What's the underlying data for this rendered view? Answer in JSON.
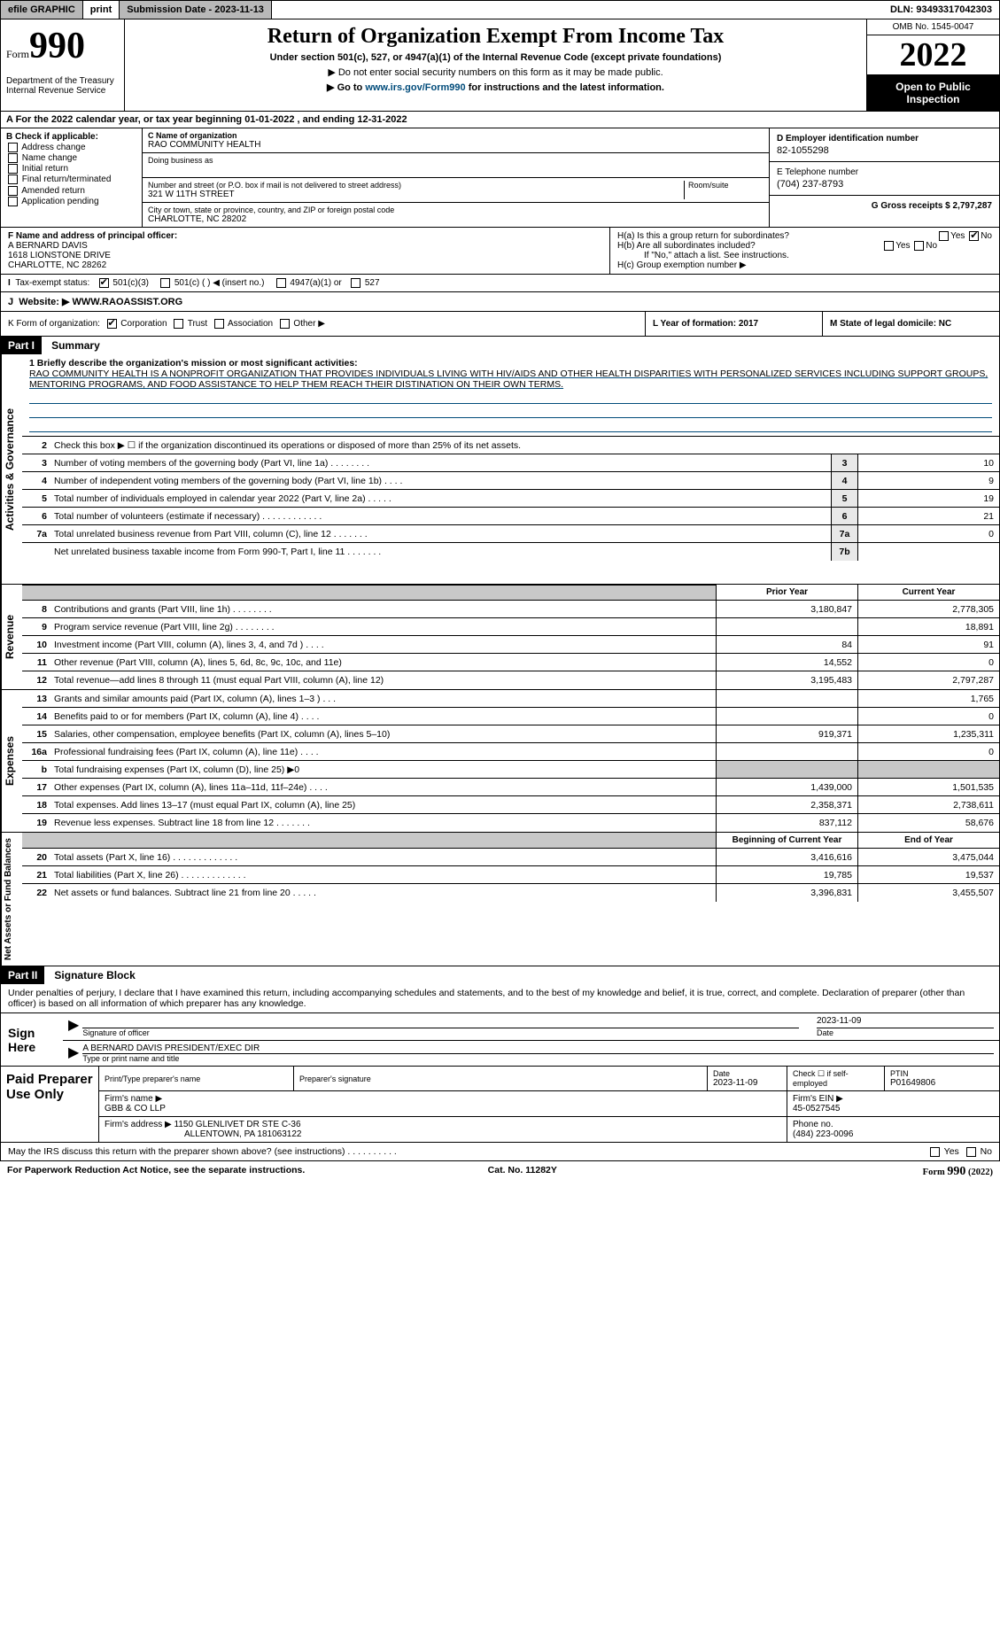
{
  "topbar": {
    "efile": "efile GRAPHIC",
    "print": "print",
    "subdate_label": "Submission Date - 2023-11-13",
    "dln": "DLN: 93493317042303"
  },
  "header": {
    "form_word": "Form",
    "form_num": "990",
    "dept": "Department of the Treasury\nInternal Revenue Service",
    "title": "Return of Organization Exempt From Income Tax",
    "sub1": "Under section 501(c), 527, or 4947(a)(1) of the Internal Revenue Code (except private foundations)",
    "sub2": "▶ Do not enter social security numbers on this form as it may be made public.",
    "sub3_pre": "▶ Go to ",
    "sub3_link": "www.irs.gov/Form990",
    "sub3_post": " for instructions and the latest information.",
    "omb": "OMB No. 1545-0047",
    "year": "2022",
    "open": "Open to Public Inspection"
  },
  "rowA": "A For the 2022 calendar year, or tax year beginning 01-01-2022     , and ending 12-31-2022",
  "sectionB": {
    "hdr": "B Check if applicable:",
    "opts": [
      "Address change",
      "Name change",
      "Initial return",
      "Final return/terminated",
      "Amended return",
      "Application pending"
    ],
    "c_label": "C Name of organization",
    "c_name": "RAO COMMUNITY HEALTH",
    "dba": "Doing business as",
    "addr_label": "Number and street (or P.O. box if mail is not delivered to street address)",
    "addr_room": "Room/suite",
    "addr": "321 W 11TH STREET",
    "city_label": "City or town, state or province, country, and ZIP or foreign postal code",
    "city": "CHARLOTTE, NC  28202",
    "d_label": "D Employer identification number",
    "d_val": "82-1055298",
    "e_label": "E Telephone number",
    "e_val": "(704) 237-8793",
    "g_label": "G Gross receipts $ 2,797,287"
  },
  "sectionF": {
    "f_label": "F  Name and address of principal officer:",
    "f_name": "A BERNARD DAVIS",
    "f_addr1": "1618 LIONSTONE DRIVE",
    "f_addr2": "CHARLOTTE, NC  28262",
    "ha": "H(a)  Is this a group return for subordinates?",
    "hb": "H(b)  Are all subordinates included?",
    "hb_note": "If \"No,\" attach a list. See instructions.",
    "hc": "H(c)  Group exemption number ▶",
    "yes": "Yes",
    "no": "No"
  },
  "exempt": {
    "i": "I",
    "label": "Tax-exempt status:",
    "o1": "501(c)(3)",
    "o2": "501(c) (   ) ◀ (insert no.)",
    "o3": "4947(a)(1) or",
    "o4": "527"
  },
  "web": {
    "j": "J",
    "label": "Website: ▶",
    "val": " WWW.RAOASSIST.ORG"
  },
  "kform": {
    "k": "K Form of organization:",
    "opts": [
      "Corporation",
      "Trust",
      "Association",
      "Other ▶"
    ],
    "l": "L Year of formation: 2017",
    "m": "M State of legal domicile: NC"
  },
  "part1": {
    "hdr": "Part I",
    "title": "Summary",
    "q1_label": "1  Briefly describe the organization's mission or most significant activities:",
    "q1_text": "RAO COMMUNITY HEALTH IS A NONPROFIT ORGANIZATION THAT PROVIDES INDIVIDUALS LIVING WITH HIV/AIDS AND OTHER HEALTH DISPARITIES WITH PERSONALIZED SERVICES INCLUDING SUPPORT GROUPS, MENTORING PROGRAMS, AND FOOD ASSISTANCE TO HELP THEM REACH THEIR DISTINATION ON THEIR OWN TERMS.",
    "q2": "Check this box ▶ ☐  if the organization discontinued its operations or disposed of more than 25% of its net assets.",
    "lines_gov": [
      {
        "n": "3",
        "t": "Number of voting members of the governing body (Part VI, line 1a)   .    .    .    .    .    .    .    .",
        "box": "3",
        "v": "10"
      },
      {
        "n": "4",
        "t": "Number of independent voting members of the governing body (Part VI, line 1b)   .    .    .    .",
        "box": "4",
        "v": "9"
      },
      {
        "n": "5",
        "t": "Total number of individuals employed in calendar year 2022 (Part V, line 2a)   .    .    .    .    .",
        "box": "5",
        "v": "19"
      },
      {
        "n": "6",
        "t": "Total number of volunteers (estimate if necessary)    .    .    .    .    .    .    .    .    .    .    .    .",
        "box": "6",
        "v": "21"
      },
      {
        "n": "7a",
        "t": "Total unrelated business revenue from Part VIII, column (C), line 12   .    .    .    .    .    .    .",
        "box": "7a",
        "v": "0"
      },
      {
        "n": "",
        "t": "Net unrelated business taxable income from Form 990-T, Part I, line 11   .    .    .    .    .    .    .",
        "box": "7b",
        "v": ""
      }
    ],
    "col_prior": "Prior Year",
    "col_curr": "Current Year",
    "rev": [
      {
        "n": "8",
        "t": "Contributions and grants (Part VIII, line 1h)   .    .    .    .    .    .    .    .",
        "p": "3,180,847",
        "c": "2,778,305"
      },
      {
        "n": "9",
        "t": "Program service revenue (Part VIII, line 2g)   .    .    .    .    .    .    .    .",
        "p": "",
        "c": "18,891"
      },
      {
        "n": "10",
        "t": "Investment income (Part VIII, column (A), lines 3, 4, and 7d )   .    .    .    .",
        "p": "84",
        "c": "91"
      },
      {
        "n": "11",
        "t": "Other revenue (Part VIII, column (A), lines 5, 6d, 8c, 9c, 10c, and 11e)",
        "p": "14,552",
        "c": "0"
      },
      {
        "n": "12",
        "t": "Total revenue—add lines 8 through 11 (must equal Part VIII, column (A), line 12)",
        "p": "3,195,483",
        "c": "2,797,287"
      }
    ],
    "exp": [
      {
        "n": "13",
        "t": "Grants and similar amounts paid (Part IX, column (A), lines 1–3 )   .    .    .",
        "p": "",
        "c": "1,765"
      },
      {
        "n": "14",
        "t": "Benefits paid to or for members (Part IX, column (A), line 4)   .    .    .    .",
        "p": "",
        "c": "0"
      },
      {
        "n": "15",
        "t": "Salaries, other compensation, employee benefits (Part IX, column (A), lines 5–10)",
        "p": "919,371",
        "c": "1,235,311"
      },
      {
        "n": "16a",
        "t": "Professional fundraising fees (Part IX, column (A), line 11e)   .    .    .    .",
        "p": "",
        "c": "0"
      },
      {
        "n": "b",
        "t": "Total fundraising expenses (Part IX, column (D), line 25) ▶0",
        "p": "shaded",
        "c": "shaded"
      },
      {
        "n": "17",
        "t": "Other expenses (Part IX, column (A), lines 11a–11d, 11f–24e)   .    .    .    .",
        "p": "1,439,000",
        "c": "1,501,535"
      },
      {
        "n": "18",
        "t": "Total expenses. Add lines 13–17 (must equal Part IX, column (A), line 25)",
        "p": "2,358,371",
        "c": "2,738,611"
      },
      {
        "n": "19",
        "t": "Revenue less expenses. Subtract line 18 from line 12   .    .    .    .    .    .    .",
        "p": "837,112",
        "c": "58,676"
      }
    ],
    "col_beg": "Beginning of Current Year",
    "col_end": "End of Year",
    "net": [
      {
        "n": "20",
        "t": "Total assets (Part X, line 16)   .    .    .    .    .    .    .    .    .    .    .    .    .",
        "p": "3,416,616",
        "c": "3,475,044"
      },
      {
        "n": "21",
        "t": "Total liabilities (Part X, line 26)   .    .    .    .    .    .    .    .    .    .    .    .    .",
        "p": "19,785",
        "c": "19,537"
      },
      {
        "n": "22",
        "t": "Net assets or fund balances. Subtract line 21 from line 20   .    .    .    .    .",
        "p": "3,396,831",
        "c": "3,455,507"
      }
    ],
    "vlabels": {
      "gov": "Activities & Governance",
      "rev": "Revenue",
      "exp": "Expenses",
      "net": "Net Assets or Fund Balances"
    }
  },
  "part2": {
    "hdr": "Part II",
    "title": "Signature Block",
    "decl": "Under penalties of perjury, I declare that I have examined this return, including accompanying schedules and statements, and to the best of my knowledge and belief, it is true, correct, and complete. Declaration of preparer (other than officer) is based on all information of which preparer has any knowledge.",
    "sign_here": "Sign Here",
    "sig_officer": "Signature of officer",
    "sig_date": "2023-11-09",
    "date_lbl": "Date",
    "officer_name": "A BERNARD DAVIS  PRESIDENT/EXEC DIR",
    "officer_sub": "Type or print name and title",
    "paid": "Paid Preparer Use Only",
    "p_name_lbl": "Print/Type preparer's name",
    "p_sig_lbl": "Preparer's signature",
    "p_date_lbl": "Date",
    "p_date": "2023-11-09",
    "p_check": "Check ☐ if self-employed",
    "ptin_lbl": "PTIN",
    "ptin": "P01649806",
    "firm_name_lbl": "Firm's name    ▶ ",
    "firm_name": "GBB & CO LLP",
    "firm_ein_lbl": "Firm's EIN ▶ ",
    "firm_ein": "45-0527545",
    "firm_addr_lbl": "Firm's address ▶ ",
    "firm_addr1": "1150 GLENLIVET DR STE C-36",
    "firm_addr2": "ALLENTOWN, PA  181063122",
    "phone_lbl": "Phone no. ",
    "phone": "(484) 223-0096",
    "may_irs": "May the IRS discuss this return with the preparer shown above? (see instructions)    .    .    .    .    .    .    .    .    .    .",
    "yes": "Yes",
    "no": "No"
  },
  "footer": {
    "pra": "For Paperwork Reduction Act Notice, see the separate instructions.",
    "cat": "Cat. No. 11282Y",
    "form": "Form 990 (2022)"
  }
}
